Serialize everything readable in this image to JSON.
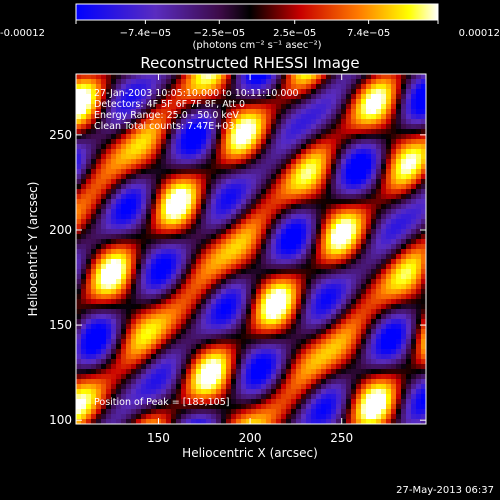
{
  "colorbar": {
    "tick_labels": [
      "-0.00012",
      "−7.4e−05",
      "−2.5e−05",
      "2.5e−05",
      "7.4e−05",
      "0.00012"
    ],
    "ticks": [
      -0.00012,
      -7.4e-05,
      -2.5e-05,
      2.5e-05,
      7.4e-05,
      0.00012
    ],
    "range": [
      -0.00012,
      0.00012
    ],
    "unit_label": "(photons cm⁻² s⁻¹ asec⁻²)",
    "colors": [
      "#0000ff",
      "#5a2cc0",
      "#3c0a46",
      "#000000",
      "#c80000",
      "#ff7a00",
      "#ffff00",
      "#ffffff"
    ]
  },
  "annotations": {
    "line1": "27-Jan-2003 10:05:10.000 to 10:11:10.000",
    "line2": "Detectors: 4F 5F 6F 7F 8F, Att 0",
    "line3": "Energy Range: 25.0 - 50.0 keV",
    "line4": "Clean     Total counts: 7.47E+03",
    "peak": "Position of Peak = [183,105]"
  },
  "footer": {
    "timestamp": "27-May-2013 06:37"
  },
  "chart_data": {
    "type": "heatmap",
    "title": "Reconstructed RHESSI Image",
    "xlabel": "Heliocentric X (arcsec)",
    "ylabel": "Heliocentric Y (arcsec)",
    "xlim": [
      105,
      296
    ],
    "ylim": [
      98,
      282
    ],
    "x_ticks": [
      150,
      200,
      250
    ],
    "y_ticks": [
      100,
      150,
      200,
      250
    ],
    "value_range": [
      -0.00012,
      0.00012
    ],
    "peak_position": [
      183,
      105
    ],
    "pattern": "diagonal fringe pattern running lower-left to upper-right with bright yellow/white blobs along the ridges and blue/purple troughs between"
  }
}
